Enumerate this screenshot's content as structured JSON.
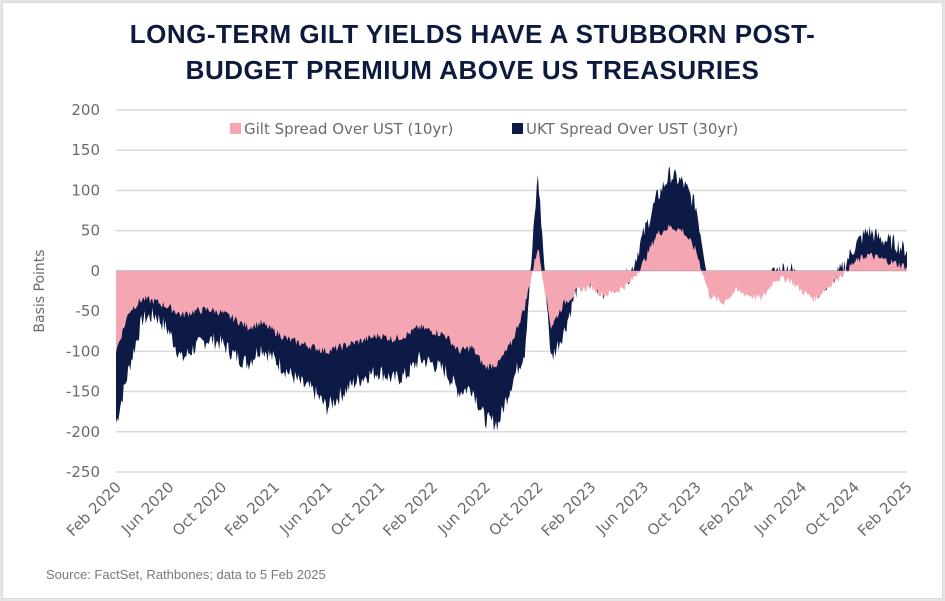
{
  "title": "LONG-TERM GILT YIELDS HAVE A STUBBORN POST-BUDGET PREMIUM ABOVE US TREASURIES",
  "title_lines": [
    "LONG-TERM GILT YIELDS HAVE A STUBBORN POST-",
    "BUDGET PREMIUM ABOVE US TREASURIES"
  ],
  "source": "Source: FactSet, Rathbones; data to 5 Feb 2025",
  "colors": {
    "gilt_10yr": "#f4a6b3",
    "ukt_30yr": "#0d1a45",
    "grid": "#d9d9d9",
    "text": "#6b6b6b",
    "title": "#0d1a3d"
  },
  "chart_data": {
    "type": "area",
    "title": "LONG-TERM GILT YIELDS HAVE A STUBBORN POST-BUDGET PREMIUM ABOVE US TREASURIES",
    "xlabel": "",
    "ylabel": "Basis Points",
    "ylim": [
      -250,
      200
    ],
    "yticks": [
      200,
      150,
      100,
      50,
      0,
      -50,
      -100,
      -150,
      -200,
      -250
    ],
    "grid": true,
    "legend_position": "top-center",
    "x_tick_labels": [
      "Feb 2020",
      "Jun 2020",
      "Oct 2020",
      "Feb 2021",
      "Jun 2021",
      "Oct 2021",
      "Feb 2022",
      "Jun 2022",
      "Oct 2022",
      "Feb 2023",
      "Jun 2023",
      "Oct 2023",
      "Feb 2024",
      "Jun 2024",
      "Oct 2024",
      "Feb 2025"
    ],
    "x": [
      "2020-02",
      "2020-03",
      "2020-04",
      "2020-05",
      "2020-06",
      "2020-07",
      "2020-08",
      "2020-09",
      "2020-10",
      "2020-11",
      "2020-12",
      "2021-01",
      "2021-02",
      "2021-03",
      "2021-04",
      "2021-05",
      "2021-06",
      "2021-07",
      "2021-08",
      "2021-09",
      "2021-10",
      "2021-11",
      "2021-12",
      "2022-01",
      "2022-02",
      "2022-03",
      "2022-04",
      "2022-05",
      "2022-06",
      "2022-07",
      "2022-08",
      "2022-09",
      "2022-10",
      "2022-11",
      "2022-12",
      "2023-01",
      "2023-02",
      "2023-03",
      "2023-04",
      "2023-05",
      "2023-06",
      "2023-07",
      "2023-08",
      "2023-09",
      "2023-10",
      "2023-11",
      "2023-12",
      "2024-01",
      "2024-02",
      "2024-03",
      "2024-04",
      "2024-05",
      "2024-06",
      "2024-07",
      "2024-08",
      "2024-09",
      "2024-10",
      "2024-11",
      "2024-12",
      "2025-01",
      "2025-02"
    ],
    "series": [
      {
        "name": "UKT Spread Over UST (30yr)",
        "color": "#0d1a45",
        "values": [
          -190,
          -120,
          -60,
          -55,
          -75,
          -110,
          -95,
          -85,
          -90,
          -105,
          -115,
          -95,
          -110,
          -125,
          -140,
          -150,
          -170,
          -155,
          -140,
          -130,
          -125,
          -135,
          -130,
          -110,
          -115,
          -125,
          -150,
          -145,
          -185,
          -190,
          -140,
          -100,
          120,
          -110,
          -75,
          -20,
          -15,
          -25,
          -10,
          -5,
          45,
          90,
          120,
          110,
          80,
          -15,
          -25,
          -15,
          -10,
          -20,
          0,
          5,
          -10,
          -30,
          -15,
          0,
          30,
          50,
          40,
          35,
          25
        ]
      },
      {
        "name": "Gilt Spread Over UST (10yr)",
        "color": "#f4a6b3",
        "values": [
          -100,
          -50,
          -35,
          -38,
          -45,
          -55,
          -50,
          -48,
          -52,
          -60,
          -70,
          -65,
          -75,
          -85,
          -90,
          -95,
          -100,
          -95,
          -90,
          -85,
          -80,
          -85,
          -80,
          -70,
          -75,
          -80,
          -100,
          -95,
          -120,
          -115,
          -90,
          -45,
          30,
          -70,
          -40,
          -25,
          -20,
          -30,
          -25,
          -15,
          10,
          45,
          55,
          50,
          25,
          -30,
          -40,
          -25,
          -30,
          -35,
          -10,
          -10,
          -25,
          -35,
          -20,
          -5,
          10,
          20,
          15,
          10,
          5
        ]
      }
    ]
  }
}
